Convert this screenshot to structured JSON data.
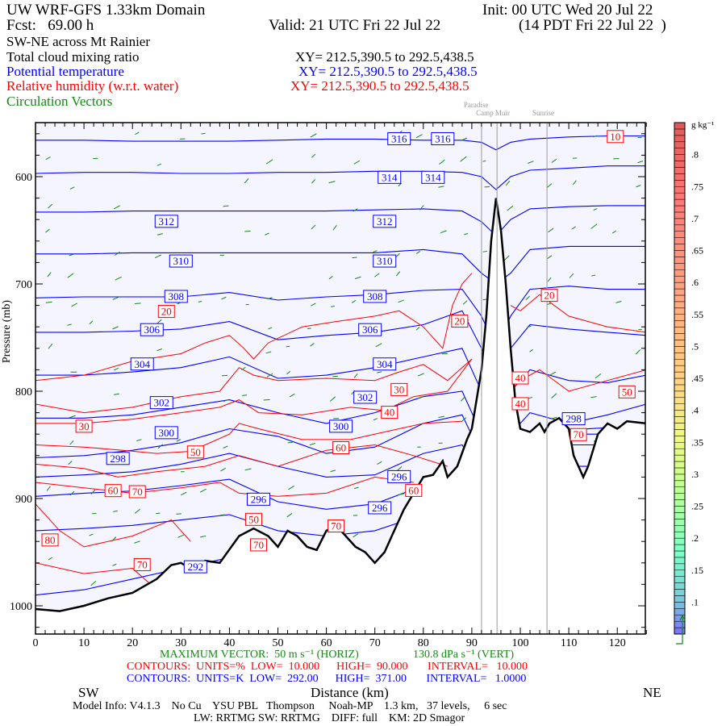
{
  "header": {
    "title": "UW WRF-GFS 1.33km Domain",
    "init": "Init: 00 UTC Wed 20 Jul 22",
    "fcst": "Fcst:   69.00 h",
    "valid": "Valid: 21 UTC Fri 22 Jul 22",
    "local": "(14 PDT Fri 22 Jul 22  )",
    "section": "SW-NE across Mt Rainier",
    "field1": "Total cloud mixing ratio",
    "field1_xy": "XY= 212.5,390.5 to 292.5,438.5",
    "field2": "Potential temperature",
    "field2_xy": "XY= 212.5,390.5 to 292.5,438.5",
    "field3": "Relative humidity (w.r.t. water)",
    "field3_xy": "XY= 212.5,390.5 to 292.5,438.5",
    "field4": "Circulation Vectors"
  },
  "colors": {
    "theta": "#0000ff",
    "rh": "#ff0000",
    "vectors": "#138a13",
    "terrain": "#000000",
    "plot_bg": "#f5f5ff"
  },
  "footer": {
    "max_vector_h": "MAXIMUM VECTOR:  50 m s⁻¹ (HORIZ)",
    "max_vector_v": "130.8 dPa s⁻¹ (VERT)",
    "rh_contours": "CONTOURS:  UNITS=%  LOW=  10.000      HIGH=  90.000       INTERVAL=   10.000",
    "theta_contours": "CONTOURS:  UNITS=K  LOW=  292.00      HIGH=  371.00       INTERVAL=   1.0000",
    "model_info": "Model Info: V4.1.3    No Cu    YSU PBL   Thompson     Noah-MP    1.3 km,   37 levels,     6 sec",
    "model_info2": "LW: RRTMG SW: RRTMG    DIFF: full    KM: 2D Smagor"
  },
  "chart_data": {
    "type": "contour cross-section",
    "title": "SW-NE across Mt Rainier",
    "xlabel": "Distance (km)",
    "ylabel": "Pressure (mb)",
    "xlim": [
      0,
      126
    ],
    "ylim": [
      1050,
      550
    ],
    "x_ticks": [
      "0",
      "10",
      "20",
      "30",
      "40",
      "50",
      "60",
      "70",
      "80",
      "90",
      "100",
      "110",
      "120"
    ],
    "y_ticks": [
      "600",
      "700",
      "800",
      "900",
      "1000"
    ],
    "left_end": "SW",
    "right_end": "NE",
    "stations": [
      {
        "name": "Paradise",
        "km": 92
      },
      {
        "name": "Camp Muir",
        "km": 95.2
      },
      {
        "name": "Sunrise",
        "km": 105.5
      }
    ],
    "terrain": [
      [
        0,
        1003
      ],
      [
        5,
        1005
      ],
      [
        10,
        1000
      ],
      [
        15,
        993
      ],
      [
        20,
        988
      ],
      [
        25,
        975
      ],
      [
        28,
        962
      ],
      [
        30,
        960
      ],
      [
        33,
        968
      ],
      [
        35,
        958
      ],
      [
        38,
        960
      ],
      [
        42,
        935
      ],
      [
        45,
        928
      ],
      [
        48,
        935
      ],
      [
        50,
        945
      ],
      [
        52,
        930
      ],
      [
        54,
        935
      ],
      [
        56,
        945
      ],
      [
        58,
        948
      ],
      [
        60,
        930
      ],
      [
        62,
        925
      ],
      [
        64,
        935
      ],
      [
        66,
        945
      ],
      [
        68,
        950
      ],
      [
        70,
        960
      ],
      [
        72,
        950
      ],
      [
        74,
        930
      ],
      [
        76,
        910
      ],
      [
        78,
        895
      ],
      [
        80,
        880
      ],
      [
        82,
        878
      ],
      [
        84,
        865
      ],
      [
        85,
        880
      ],
      [
        87,
        870
      ],
      [
        89,
        845
      ],
      [
        90,
        835
      ],
      [
        92,
        780
      ],
      [
        93,
        730
      ],
      [
        94,
        660
      ],
      [
        95,
        620
      ],
      [
        96,
        650
      ],
      [
        97,
        700
      ],
      [
        98,
        760
      ],
      [
        99,
        810
      ],
      [
        100,
        835
      ],
      [
        102,
        838
      ],
      [
        104,
        830
      ],
      [
        105,
        838
      ],
      [
        106,
        830
      ],
      [
        108,
        825
      ],
      [
        110,
        835
      ],
      [
        111,
        860
      ],
      [
        113,
        880
      ],
      [
        114,
        870
      ],
      [
        116,
        840
      ],
      [
        118,
        830
      ],
      [
        120,
        835
      ],
      [
        122,
        828
      ],
      [
        126,
        830
      ]
    ],
    "theta_x": [
      0,
      10,
      20,
      30,
      40,
      50,
      60,
      70,
      80,
      88,
      92,
      95,
      98,
      102,
      110,
      118,
      126
    ],
    "theta_series": [
      {
        "level": 316,
        "p": [
          566,
          566,
          567,
          567,
          567,
          566,
          565,
          565,
          566,
          566,
          568,
          575,
          568,
          565,
          563,
          562,
          562
        ]
      },
      {
        "level": 314,
        "p": [
          597,
          596,
          596,
          597,
          597,
          596,
          596,
          595,
          595,
          596,
          600,
          612,
          600,
          594,
          592,
          590,
          590
        ]
      },
      {
        "level": 312,
        "p": [
          633,
          633,
          632,
          632,
          632,
          632,
          632,
          631,
          630,
          632,
          642,
          655,
          640,
          630,
          628,
          627,
          627
        ]
      },
      {
        "level": 310,
        "p": [
          672,
          672,
          671,
          671,
          671,
          671,
          671,
          671,
          668,
          672,
          690,
          700,
          690,
          668,
          665,
          665,
          665
        ]
      },
      {
        "level": 308,
        "p": [
          713,
          712,
          712,
          712,
          708,
          715,
          712,
          710,
          706,
          705,
          730,
          760,
          730,
          705,
          702,
          705,
          705
        ]
      },
      {
        "level": 306,
        "p": [
          745,
          745,
          744,
          742,
          735,
          752,
          748,
          745,
          738,
          725,
          760,
          800,
          760,
          738,
          742,
          745,
          748
        ]
      },
      {
        "level": 304,
        "p": [
          785,
          785,
          782,
          778,
          768,
          788,
          785,
          778,
          768,
          760,
          800,
          850,
          800,
          780,
          790,
          792,
          785
        ]
      },
      {
        "level": 302,
        "p": [
          825,
          825,
          822,
          815,
          808,
          820,
          830,
          820,
          805,
          800,
          840,
          880,
          840,
          820,
          830,
          822,
          812
        ]
      },
      {
        "level": 300,
        "p": [
          862,
          860,
          855,
          848,
          835,
          842,
          858,
          852,
          830,
          822,
          860,
          900,
          860,
          838,
          836,
          834,
          834
        ]
      },
      {
        "level": 298,
        "p": [
          880,
          878,
          875,
          868,
          858,
          870,
          880,
          878,
          858,
          850,
          880,
          920,
          880,
          845,
          840,
          840,
          840
        ]
      },
      {
        "level": 296,
        "p": [
          898,
          895,
          893,
          888,
          882,
          903,
          910,
          905,
          888,
          880,
          900,
          940,
          900,
          860,
          850,
          850,
          850
        ]
      },
      {
        "level": 294,
        "p": [
          930,
          928,
          925,
          920,
          915,
          930,
          935,
          930,
          915,
          905,
          920,
          960,
          920,
          880,
          870,
          870,
          870
        ]
      },
      {
        "level": 292,
        "p": [
          990,
          985,
          975,
          965,
          955,
          960,
          965,
          960,
          950,
          940,
          950,
          980,
          950,
          900,
          900,
          900,
          900
        ]
      }
    ],
    "theta_labels": [
      {
        "text": "316",
        "km": 75,
        "p": 565
      },
      {
        "text": "316",
        "km": 84,
        "p": 565
      },
      {
        "text": "314",
        "km": 73,
        "p": 601
      },
      {
        "text": "314",
        "km": 82,
        "p": 601
      },
      {
        "text": "312",
        "km": 27,
        "p": 642
      },
      {
        "text": "312",
        "km": 72,
        "p": 642
      },
      {
        "text": "310",
        "km": 30,
        "p": 679
      },
      {
        "text": "310",
        "km": 72,
        "p": 679
      },
      {
        "text": "308",
        "km": 29,
        "p": 712
      },
      {
        "text": "308",
        "km": 70,
        "p": 712
      },
      {
        "text": "306",
        "km": 24,
        "p": 743
      },
      {
        "text": "306",
        "km": 69,
        "p": 743
      },
      {
        "text": "304",
        "km": 22,
        "p": 775
      },
      {
        "text": "304",
        "km": 72,
        "p": 775
      },
      {
        "text": "302",
        "km": 26,
        "p": 811
      },
      {
        "text": "302",
        "km": 68,
        "p": 806
      },
      {
        "text": "300",
        "km": 27,
        "p": 839
      },
      {
        "text": "300",
        "km": 63,
        "p": 833
      },
      {
        "text": "298",
        "km": 17,
        "p": 863
      },
      {
        "text": "298",
        "km": 111,
        "p": 826
      },
      {
        "text": "296",
        "km": 46,
        "p": 901
      },
      {
        "text": "296",
        "km": 71,
        "p": 909
      },
      {
        "text": "296",
        "km": 75,
        "p": 880
      },
      {
        "text": "292",
        "km": 33,
        "p": 964
      }
    ],
    "rh_series": [
      {
        "level": 20,
        "points": [
          [
            0,
            790
          ],
          [
            10,
            785
          ],
          [
            20,
            772
          ],
          [
            30,
            765
          ],
          [
            35,
            755
          ],
          [
            40,
            748
          ],
          [
            43,
            760
          ],
          [
            45,
            770
          ],
          [
            48,
            755
          ],
          [
            55,
            740
          ],
          [
            62,
            735
          ],
          [
            70,
            730
          ],
          [
            75,
            725
          ],
          [
            80,
            740
          ],
          [
            84,
            760
          ],
          [
            86,
            720
          ],
          [
            88,
            700
          ],
          [
            90,
            690
          ]
        ]
      },
      {
        "level": 20,
        "points": [
          [
            98,
            720
          ],
          [
            100,
            725
          ],
          [
            104,
            710
          ],
          [
            110,
            730
          ],
          [
            118,
            740
          ],
          [
            126,
            745
          ]
        ]
      },
      {
        "level": 30,
        "points": [
          [
            0,
            812
          ],
          [
            10,
            820
          ],
          [
            20,
            815
          ],
          [
            30,
            805
          ],
          [
            38,
            800
          ],
          [
            42,
            778
          ],
          [
            45,
            785
          ],
          [
            50,
            790
          ],
          [
            60,
            788
          ],
          [
            70,
            790
          ],
          [
            75,
            782
          ],
          [
            80,
            775
          ],
          [
            85,
            790
          ],
          [
            90,
            770
          ]
        ]
      },
      {
        "level": 40,
        "points": [
          [
            0,
            830
          ],
          [
            10,
            830
          ],
          [
            20,
            826
          ],
          [
            30,
            820
          ],
          [
            38,
            815
          ],
          [
            42,
            808
          ],
          [
            46,
            820
          ],
          [
            55,
            822
          ],
          [
            65,
            815
          ],
          [
            72,
            818
          ],
          [
            78,
            805
          ],
          [
            85,
            800
          ],
          [
            90,
            770
          ]
        ]
      },
      {
        "level": 40,
        "points": [
          [
            98,
            800
          ],
          [
            100,
            790
          ],
          [
            104,
            780
          ],
          [
            110,
            800
          ],
          [
            118,
            790
          ],
          [
            126,
            780
          ]
        ]
      },
      {
        "level": 50,
        "points": [
          [
            0,
            850
          ],
          [
            10,
            852
          ],
          [
            18,
            855
          ],
          [
            25,
            858
          ],
          [
            32,
            856
          ],
          [
            40,
            840
          ],
          [
            42,
            830
          ],
          [
            46,
            835
          ],
          [
            55,
            845
          ],
          [
            65,
            845
          ],
          [
            72,
            838
          ],
          [
            80,
            830
          ],
          [
            88,
            828
          ]
        ]
      },
      {
        "level": 60,
        "points": [
          [
            0,
            868
          ],
          [
            10,
            872
          ],
          [
            17,
            880
          ],
          [
            25,
            875
          ],
          [
            35,
            870
          ],
          [
            42,
            860
          ],
          [
            50,
            870
          ],
          [
            60,
            855
          ],
          [
            70,
            850
          ],
          [
            78,
            860
          ],
          [
            85,
            870
          ]
        ]
      },
      {
        "level": 70,
        "points": [
          [
            0,
            885
          ],
          [
            10,
            890
          ],
          [
            20,
            895
          ],
          [
            30,
            890
          ],
          [
            38,
            885
          ],
          [
            42,
            895
          ],
          [
            50,
            898
          ],
          [
            60,
            895
          ],
          [
            70,
            880
          ],
          [
            78,
            885
          ]
        ]
      },
      {
        "level": 80,
        "points": [
          [
            0,
            905
          ],
          [
            5,
            930
          ],
          [
            10,
            945
          ],
          [
            20,
            935
          ],
          [
            28,
            920
          ],
          [
            32,
            940
          ]
        ]
      },
      {
        "level": 70,
        "points": [
          [
            0,
            960
          ],
          [
            10,
            970
          ],
          [
            20,
            965
          ],
          [
            25,
            985
          ]
        ]
      }
    ],
    "rh_labels": [
      {
        "text": "10",
        "km": 119.6,
        "p": 563
      },
      {
        "text": "20",
        "km": 27,
        "p": 726
      },
      {
        "text": "20",
        "km": 87.5,
        "p": 735
      },
      {
        "text": "20",
        "km": 106,
        "p": 711
      },
      {
        "text": "30",
        "km": 10,
        "p": 833
      },
      {
        "text": "30",
        "km": 75,
        "p": 786
      },
      {
        "text": "40",
        "km": 100,
        "p": 788
      },
      {
        "text": "40",
        "km": 100,
        "p": 812
      },
      {
        "text": "40",
        "km": 73,
        "p": 820
      },
      {
        "text": "50",
        "km": 33,
        "p": 857
      },
      {
        "text": "50",
        "km": 122,
        "p": 801
      },
      {
        "text": "50",
        "km": 45,
        "p": 907
      },
      {
        "text": "60",
        "km": 63,
        "p": 853
      },
      {
        "text": "60",
        "km": 16,
        "p": 893
      },
      {
        "text": "60",
        "km": 78,
        "p": 880
      },
      {
        "text": "70",
        "km": 21,
        "p": 894
      },
      {
        "text": "70",
        "km": 46,
        "p": 918
      },
      {
        "text": "70",
        "km": 62,
        "p": 926
      },
      {
        "text": "70",
        "km": 112,
        "p": 828
      },
      {
        "text": "70",
        "km": 22,
        "p": 962
      },
      {
        "text": "80",
        "km": 3,
        "p": 939
      }
    ],
    "colorbar": {
      "units": "g kg⁻¹",
      "labels": [
        ".8",
        ".75",
        ".7",
        ".65",
        ".6",
        ".55",
        ".5",
        ".45",
        ".4",
        ".35",
        ".3",
        ".25",
        ".2",
        ".15",
        ".1"
      ],
      "min": 0.05,
      "max": 0.85
    }
  }
}
